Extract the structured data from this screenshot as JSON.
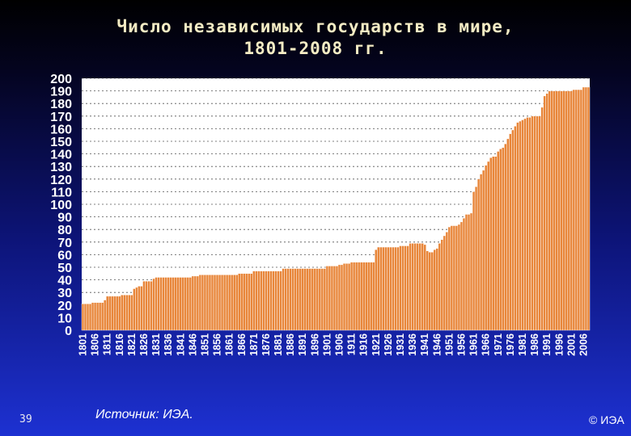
{
  "chart_data": {
    "type": "bar",
    "title": "Число независимых государств в мире,\n1801-2008 гг.",
    "xlabel": "",
    "ylabel": "",
    "ylim": [
      0,
      200
    ],
    "yticks": [
      "200",
      "190",
      "180",
      "170",
      "160",
      "150",
      "140",
      "130",
      "120",
      "110",
      "100",
      "90",
      "80",
      "70",
      "60",
      "50",
      "40",
      "30",
      "20",
      "10",
      "0"
    ],
    "xtick_labels": [
      "1801",
      "1806",
      "1811",
      "1816",
      "1821",
      "1826",
      "1831",
      "1836",
      "1841",
      "1846",
      "1851",
      "1856",
      "1861",
      "1866",
      "1871",
      "1876",
      "1881",
      "1886",
      "1891",
      "1896",
      "1901",
      "1906",
      "1911",
      "1916",
      "1921",
      "1926",
      "1931",
      "1936",
      "1941",
      "1946",
      "1951",
      "1956",
      "1961",
      "1966",
      "1971",
      "1976",
      "1981",
      "1986",
      "1991",
      "1996",
      "2001",
      "2006"
    ],
    "grid": "horizontal dashed",
    "bar_color": "#e8863a",
    "x_start": 1801,
    "x_end": 2008,
    "values": [
      21,
      21,
      21,
      21,
      22,
      22,
      22,
      22,
      22,
      24,
      27,
      27,
      27,
      27,
      27,
      27,
      28,
      28,
      28,
      28,
      28,
      33,
      34,
      35,
      35,
      39,
      39,
      39,
      39,
      41,
      42,
      42,
      42,
      42,
      42,
      42,
      42,
      42,
      42,
      42,
      42,
      42,
      42,
      42,
      42,
      43,
      43,
      43,
      44,
      44,
      44,
      44,
      44,
      44,
      44,
      44,
      44,
      44,
      44,
      44,
      44,
      44,
      44,
      44,
      45,
      45,
      45,
      45,
      45,
      45,
      47,
      47,
      47,
      47,
      47,
      47,
      47,
      47,
      47,
      47,
      47,
      47,
      49,
      49,
      49,
      49,
      49,
      49,
      49,
      49,
      49,
      49,
      49,
      49,
      49,
      49,
      49,
      49,
      49,
      49,
      51,
      51,
      51,
      51,
      51,
      52,
      52,
      53,
      53,
      53,
      54,
      54,
      54,
      54,
      54,
      54,
      54,
      54,
      54,
      54,
      64,
      66,
      66,
      66,
      66,
      66,
      66,
      66,
      66,
      66,
      67,
      67,
      67,
      67,
      69,
      69,
      69,
      69,
      69,
      69,
      68,
      63,
      62,
      62,
      64,
      65,
      69,
      72,
      75,
      78,
      82,
      83,
      83,
      83,
      84,
      86,
      89,
      92,
      92,
      93,
      110,
      114,
      120,
      124,
      127,
      131,
      134,
      137,
      138,
      138,
      142,
      144,
      145,
      148,
      152,
      156,
      159,
      162,
      165,
      166,
      167,
      168,
      169,
      169,
      170,
      170,
      170,
      170,
      177,
      186,
      188,
      190,
      190,
      190,
      190,
      190,
      190,
      190,
      190,
      190,
      190,
      191,
      191,
      191,
      191,
      193,
      193,
      193
    ]
  },
  "footer": {
    "slide_number": "39",
    "source": "Источник:  ИЭА.",
    "copyright": "© ИЭА"
  }
}
